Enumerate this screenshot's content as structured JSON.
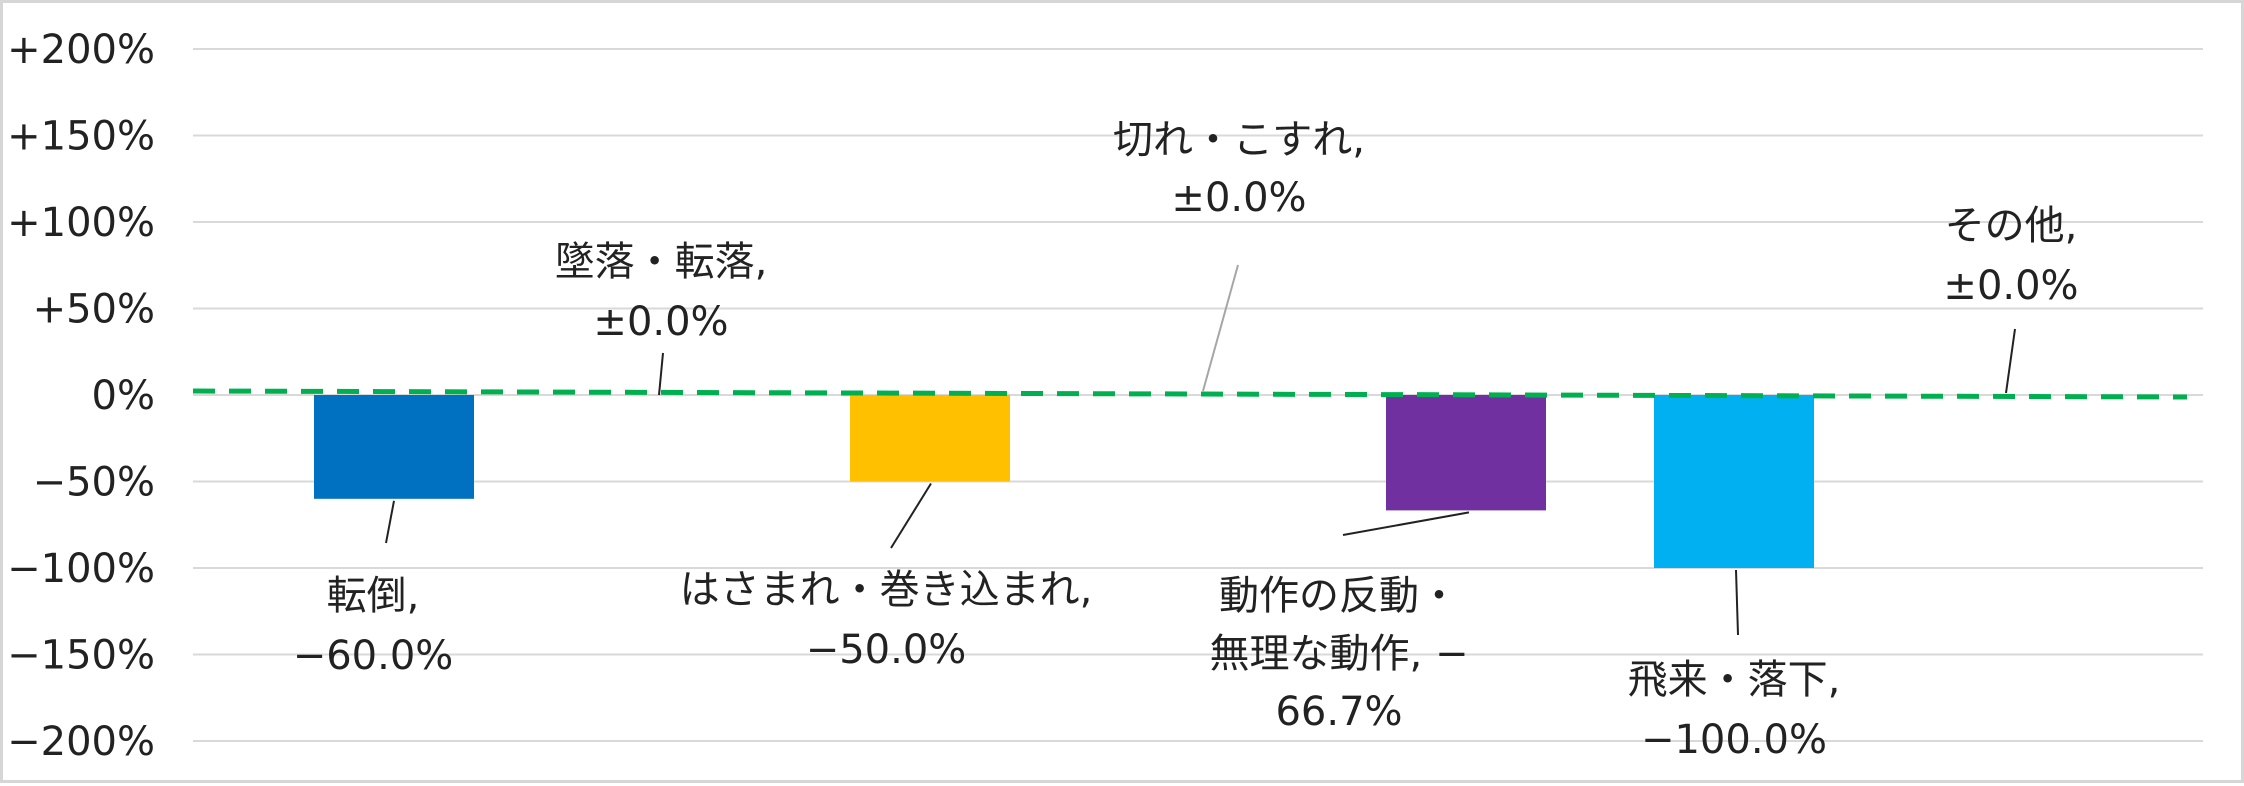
{
  "chart_data": {
    "type": "bar",
    "title": "",
    "xlabel": "",
    "ylabel": "",
    "ylim": [
      -200,
      200
    ],
    "y_ticks": [
      200,
      150,
      100,
      50,
      0,
      -50,
      -100,
      -150,
      -200
    ],
    "y_tick_labels": [
      "+200%",
      "+150%",
      "+100%",
      "+50%",
      "0%",
      "−50%",
      "−100%",
      "−150%",
      "−200%"
    ],
    "grid": true,
    "legend": "none",
    "reference_line": {
      "value": 0,
      "style": "dashed",
      "color": "#00B050"
    },
    "categories": [
      "転倒",
      "墜落・転落",
      "はさまれ・巻き込まれ",
      "切れ・こすれ",
      "動作の反動・無理な動作",
      "飛来・落下",
      "その他"
    ],
    "values": [
      -60.0,
      0.0,
      -50.0,
      0.0,
      -66.7,
      -100.0,
      0.0
    ],
    "colors": [
      "#0070C0",
      "#7F7F7F",
      "#FFC000",
      "#7F7F7F",
      "#7030A0",
      "#00B0F0",
      "#7F7F7F"
    ],
    "data_labels": [
      [
        "転倒,",
        "−60.0%"
      ],
      [
        "墜落・転落,",
        "±0.0%"
      ],
      [
        "はさまれ・巻き込まれ,",
        "−50.0%"
      ],
      [
        "切れ・こすれ,",
        "±0.0%"
      ],
      [
        "動作の反動・",
        "無理な動作, −",
        "66.7%"
      ],
      [
        "飛来・落下,",
        "−100.0%"
      ],
      [
        "その他,",
        "±0.0%"
      ]
    ]
  }
}
